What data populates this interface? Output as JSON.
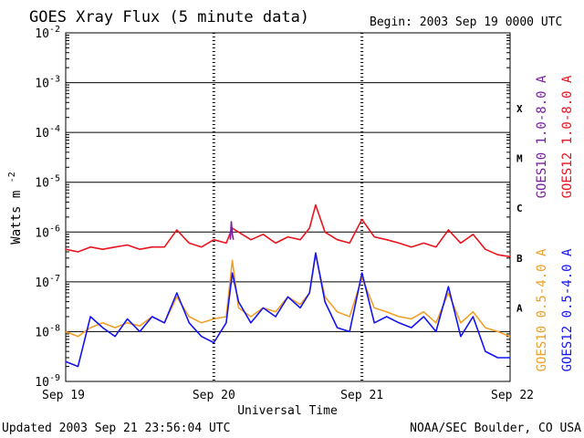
{
  "header": {
    "title": "GOES Xray Flux (5 minute data)",
    "begin": "Begin:  2003 Sep 19 0000 UTC"
  },
  "footer": {
    "updated": "Updated 2003 Sep 21 23:56:04 UTC",
    "credit": "NOAA/SEC Boulder, CO USA"
  },
  "colors": {
    "goes10_long": "#7a1fa2",
    "goes12_long": "#e8141e",
    "goes10_short": "#f0a028",
    "goes12_short": "#1414f0",
    "grid": "#000000"
  },
  "chart_data": {
    "type": "line",
    "title": "GOES Xray Flux (5 minute data)",
    "xlabel": "Universal Time",
    "ylabel": "Watts m^-2",
    "y_scale": "log",
    "ylim": [
      1e-09,
      0.01
    ],
    "xlim": [
      "2003-09-19 00:00",
      "2003-09-22 00:00"
    ],
    "x_ticks": [
      "Sep 19",
      "Sep 20",
      "Sep 21",
      "Sep 22"
    ],
    "y_ticks": [
      {
        "base": "10",
        "exp": "-2",
        "value": 0.01
      },
      {
        "base": "10",
        "exp": "-3",
        "value": 0.001
      },
      {
        "base": "10",
        "exp": "-4",
        "value": 0.0001
      },
      {
        "base": "10",
        "exp": "-5",
        "value": 1e-05
      },
      {
        "base": "10",
        "exp": "-6",
        "value": 1e-06
      },
      {
        "base": "10",
        "exp": "-7",
        "value": 1e-07
      },
      {
        "base": "10",
        "exp": "-8",
        "value": 1e-08
      },
      {
        "base": "10",
        "exp": "-9",
        "value": 1e-09
      }
    ],
    "flare_classes": [
      {
        "label": "X",
        "value": 0.0003
      },
      {
        "label": "M",
        "value": 3e-05
      },
      {
        "label": "C",
        "value": 3e-06
      },
      {
        "label": "B",
        "value": 3e-07
      },
      {
        "label": "A",
        "value": 3e-08
      }
    ],
    "grid": "horizontal lines at each decade",
    "legend": "right side, vertical",
    "series": [
      {
        "name": "GOES10 1.0-8.0 A",
        "color": "#7a1fa2",
        "x": [
          "2003-09-20 02:40",
          "2003-09-20 02:50",
          "2003-09-20 03:00",
          "2003-09-20 03:10"
        ],
        "y": [
          7e-07,
          1.6e-06,
          9e-07,
          7e-07
        ]
      },
      {
        "name": "GOES12 1.0-8.0 A",
        "color": "#e8141e",
        "x": [
          "2003-09-19 00:00",
          "2003-09-19 02:00",
          "2003-09-19 04:00",
          "2003-09-19 06:00",
          "2003-09-19 08:00",
          "2003-09-19 10:00",
          "2003-09-19 12:00",
          "2003-09-19 14:00",
          "2003-09-19 16:00",
          "2003-09-19 18:00",
          "2003-09-19 20:00",
          "2003-09-19 22:00",
          "2003-09-20 00:00",
          "2003-09-20 02:00",
          "2003-09-20 03:00",
          "2003-09-20 04:00",
          "2003-09-20 06:00",
          "2003-09-20 08:00",
          "2003-09-20 10:00",
          "2003-09-20 12:00",
          "2003-09-20 14:00",
          "2003-09-20 15:30",
          "2003-09-20 16:30",
          "2003-09-20 18:00",
          "2003-09-20 20:00",
          "2003-09-20 22:00",
          "2003-09-21 00:00",
          "2003-09-21 02:00",
          "2003-09-21 04:00",
          "2003-09-21 06:00",
          "2003-09-21 08:00",
          "2003-09-21 10:00",
          "2003-09-21 12:00",
          "2003-09-21 14:00",
          "2003-09-21 16:00",
          "2003-09-21 18:00",
          "2003-09-21 20:00",
          "2003-09-21 22:00",
          "2003-09-22 00:00"
        ],
        "y": [
          4.5e-07,
          4e-07,
          5e-07,
          4.5e-07,
          5e-07,
          5.5e-07,
          4.5e-07,
          5e-07,
          5e-07,
          1.1e-06,
          6e-07,
          5e-07,
          7e-07,
          6e-07,
          1.2e-06,
          1e-06,
          7e-07,
          9e-07,
          6e-07,
          8e-07,
          7e-07,
          1.2e-06,
          3.5e-06,
          1e-06,
          7e-07,
          6e-07,
          1.8e-06,
          8e-07,
          7e-07,
          6e-07,
          5e-07,
          6e-07,
          5e-07,
          1.1e-06,
          6e-07,
          9e-07,
          4.5e-07,
          3.5e-07,
          3.2e-07
        ]
      },
      {
        "name": "GOES10 0.5-4.0 A",
        "color": "#f0a028",
        "x": [
          "2003-09-19 00:00",
          "2003-09-19 02:00",
          "2003-09-19 04:00",
          "2003-09-19 06:00",
          "2003-09-19 08:00",
          "2003-09-19 10:00",
          "2003-09-19 12:00",
          "2003-09-19 14:00",
          "2003-09-19 16:00",
          "2003-09-19 18:00",
          "2003-09-19 20:00",
          "2003-09-19 22:00",
          "2003-09-20 00:00",
          "2003-09-20 02:00",
          "2003-09-20 03:00",
          "2003-09-20 04:00",
          "2003-09-20 06:00",
          "2003-09-20 08:00",
          "2003-09-20 10:00",
          "2003-09-20 12:00",
          "2003-09-20 14:00",
          "2003-09-20 15:30",
          "2003-09-20 16:30",
          "2003-09-20 18:00",
          "2003-09-20 20:00",
          "2003-09-20 22:00",
          "2003-09-21 00:00",
          "2003-09-21 02:00",
          "2003-09-21 04:00",
          "2003-09-21 06:00",
          "2003-09-21 08:00",
          "2003-09-21 10:00",
          "2003-09-21 12:00",
          "2003-09-21 14:00",
          "2003-09-21 16:00",
          "2003-09-21 18:00",
          "2003-09-21 20:00",
          "2003-09-21 22:00",
          "2003-09-22 00:00"
        ],
        "y": [
          1e-08,
          8e-09,
          1.2e-08,
          1.5e-08,
          1.2e-08,
          1.5e-08,
          1.3e-08,
          2e-08,
          1.5e-08,
          5e-08,
          2e-08,
          1.5e-08,
          1.8e-08,
          2e-08,
          2.7e-07,
          3e-08,
          2e-08,
          3e-08,
          2.5e-08,
          5e-08,
          3.5e-08,
          6e-08,
          3.5e-07,
          5e-08,
          2.5e-08,
          2e-08,
          1.2e-07,
          3e-08,
          2.5e-08,
          2e-08,
          1.8e-08,
          2.5e-08,
          1.5e-08,
          6e-08,
          1.5e-08,
          2.5e-08,
          1.2e-08,
          1e-08,
          8e-09
        ]
      },
      {
        "name": "GOES12 0.5-4.0 A",
        "color": "#1414f0",
        "x": [
          "2003-09-19 00:00",
          "2003-09-19 02:00",
          "2003-09-19 04:00",
          "2003-09-19 06:00",
          "2003-09-19 08:00",
          "2003-09-19 10:00",
          "2003-09-19 12:00",
          "2003-09-19 14:00",
          "2003-09-19 16:00",
          "2003-09-19 18:00",
          "2003-09-19 20:00",
          "2003-09-19 22:00",
          "2003-09-20 00:00",
          "2003-09-20 02:00",
          "2003-09-20 03:00",
          "2003-09-20 04:00",
          "2003-09-20 06:00",
          "2003-09-20 08:00",
          "2003-09-20 10:00",
          "2003-09-20 12:00",
          "2003-09-20 14:00",
          "2003-09-20 15:30",
          "2003-09-20 16:30",
          "2003-09-20 18:00",
          "2003-09-20 20:00",
          "2003-09-20 22:00",
          "2003-09-21 00:00",
          "2003-09-21 02:00",
          "2003-09-21 04:00",
          "2003-09-21 06:00",
          "2003-09-21 08:00",
          "2003-09-21 10:00",
          "2003-09-21 12:00",
          "2003-09-21 14:00",
          "2003-09-21 16:00",
          "2003-09-21 18:00",
          "2003-09-21 20:00",
          "2003-09-21 22:00",
          "2003-09-22 00:00"
        ],
        "y": [
          2.5e-09,
          2e-09,
          2e-08,
          1.2e-08,
          8e-09,
          1.8e-08,
          1e-08,
          2e-08,
          1.5e-08,
          6e-08,
          1.5e-08,
          8e-09,
          6e-09,
          1.5e-08,
          1.5e-07,
          4e-08,
          1.5e-08,
          3e-08,
          2e-08,
          5e-08,
          3e-08,
          6e-08,
          3.8e-07,
          4e-08,
          1.2e-08,
          1e-08,
          1.5e-07,
          1.5e-08,
          2e-08,
          1.5e-08,
          1.2e-08,
          2e-08,
          1e-08,
          8e-08,
          8e-09,
          2e-08,
          4e-09,
          3e-09,
          3e-09
        ]
      }
    ]
  }
}
